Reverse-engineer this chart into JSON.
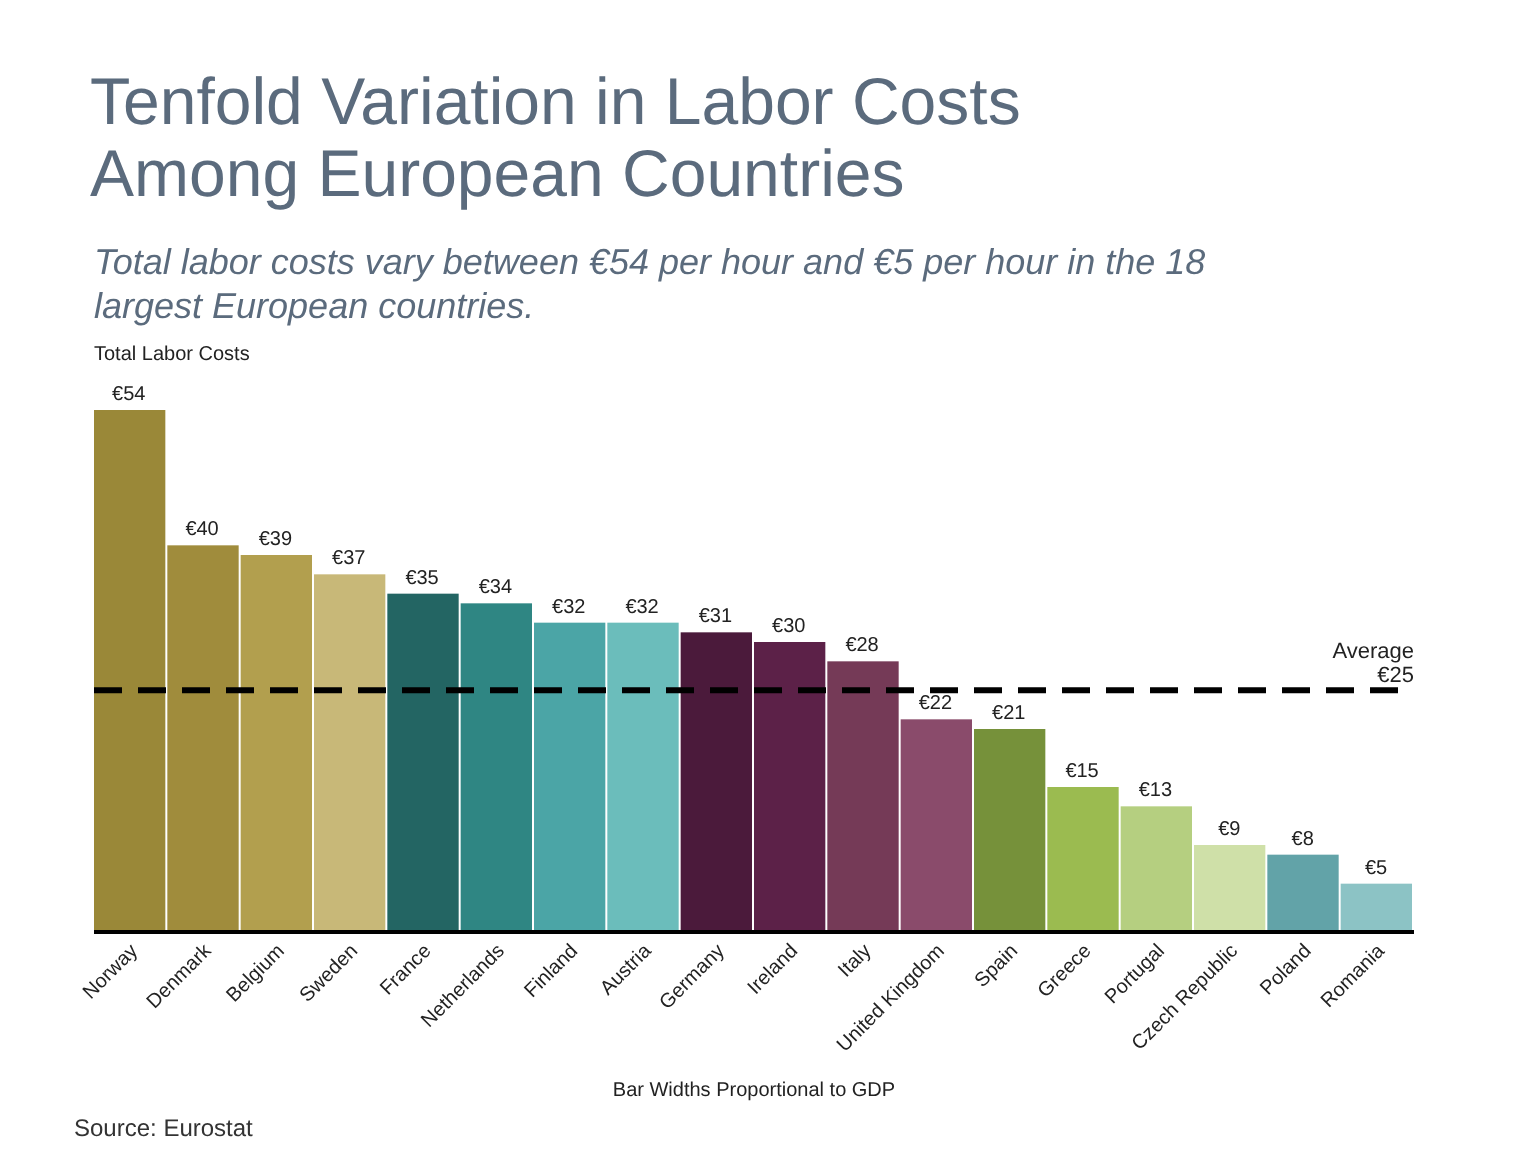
{
  "chart_data": {
    "type": "bar",
    "title": "Tenfold Variation in Labor Costs Among European Countries",
    "subtitle": "Total labor costs vary between €54 per hour and €5 per hour in the 18 largest European countries.",
    "ylabel": "Total Labor Costs",
    "xlabel": "Bar Widths Proportional to GDP",
    "categories": [
      "Norway",
      "Denmark",
      "Belgium",
      "Sweden",
      "France",
      "Netherlands",
      "Finland",
      "Austria",
      "Germany",
      "Ireland",
      "Italy",
      "United Kingdom",
      "Spain",
      "Greece",
      "Portugal",
      "Czech Republic",
      "Poland",
      "Romania"
    ],
    "values": [
      54,
      40,
      39,
      37,
      35,
      34,
      32,
      32,
      31,
      30,
      28,
      22,
      21,
      15,
      13,
      9,
      8,
      5
    ],
    "value_labels": [
      "€54",
      "€40",
      "€39",
      "€37",
      "€35",
      "€34",
      "€32",
      "€32",
      "€31",
      "€30",
      "€28",
      "€22",
      "€21",
      "€15",
      "€13",
      "€9",
      "€8",
      "€5"
    ],
    "colors": [
      "#9a8838",
      "#a08c3c",
      "#b29f4e",
      "#c8b878",
      "#236563",
      "#2f8683",
      "#4ba5a6",
      "#6bbdbb",
      "#4b1a3b",
      "#5c2148",
      "#753a57",
      "#8a4b6b",
      "#76913a",
      "#9bbb50",
      "#b5cf80",
      "#cfe0a8",
      "#62a3a8",
      "#8cc3c5"
    ],
    "ref_lines": [
      {
        "axis": "y",
        "value": 25,
        "label": "Average €25",
        "color": "#000000",
        "line_style": "dashed"
      }
    ],
    "annotations": [
      "Source: Eurostat"
    ],
    "marker": "none"
  }
}
